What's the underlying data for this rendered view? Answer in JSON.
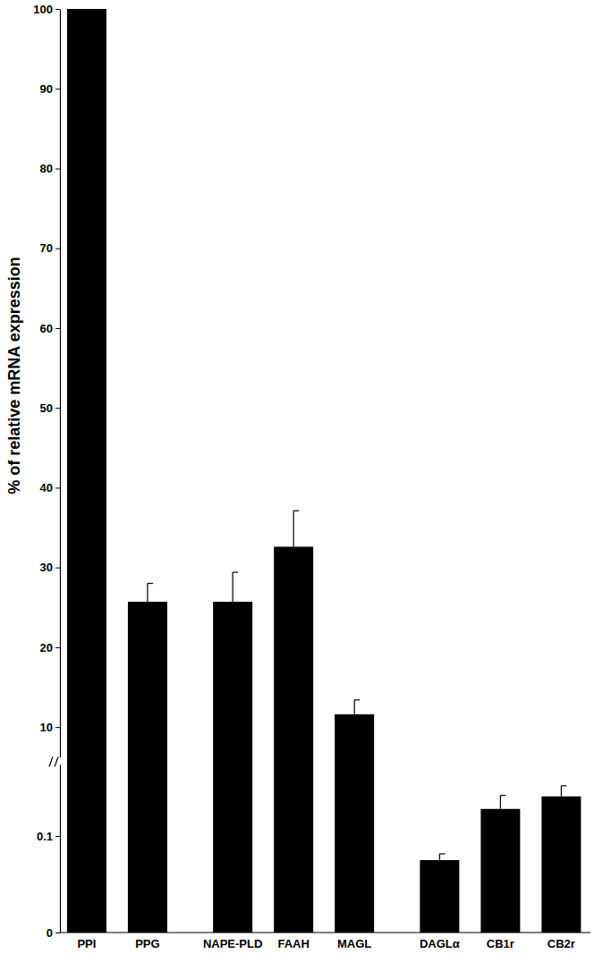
{
  "chart_data": {
    "type": "bar",
    "categories": [
      "PPI",
      "PPG",
      "NAPE-PLD",
      "FAAH",
      "MAGL",
      "DAGLα",
      "CB1r",
      "CB2r"
    ],
    "values": [
      100,
      25.7,
      25.7,
      32.6,
      11.6,
      0.075,
      0.128,
      0.141
    ],
    "errors": [
      0.3,
      2.3,
      3.7,
      4.5,
      1.8,
      0.0065,
      0.014,
      0.011
    ],
    "color": "#000000",
    "y_label": "% of relative mRNA expression",
    "ylim": [
      0,
      100
    ],
    "ybreak": [
      0.175,
      8
    ],
    "yticks": [
      0,
      0.1,
      10,
      20,
      30,
      40,
      50,
      60,
      70,
      80,
      90,
      100
    ],
    "grid": false
  }
}
